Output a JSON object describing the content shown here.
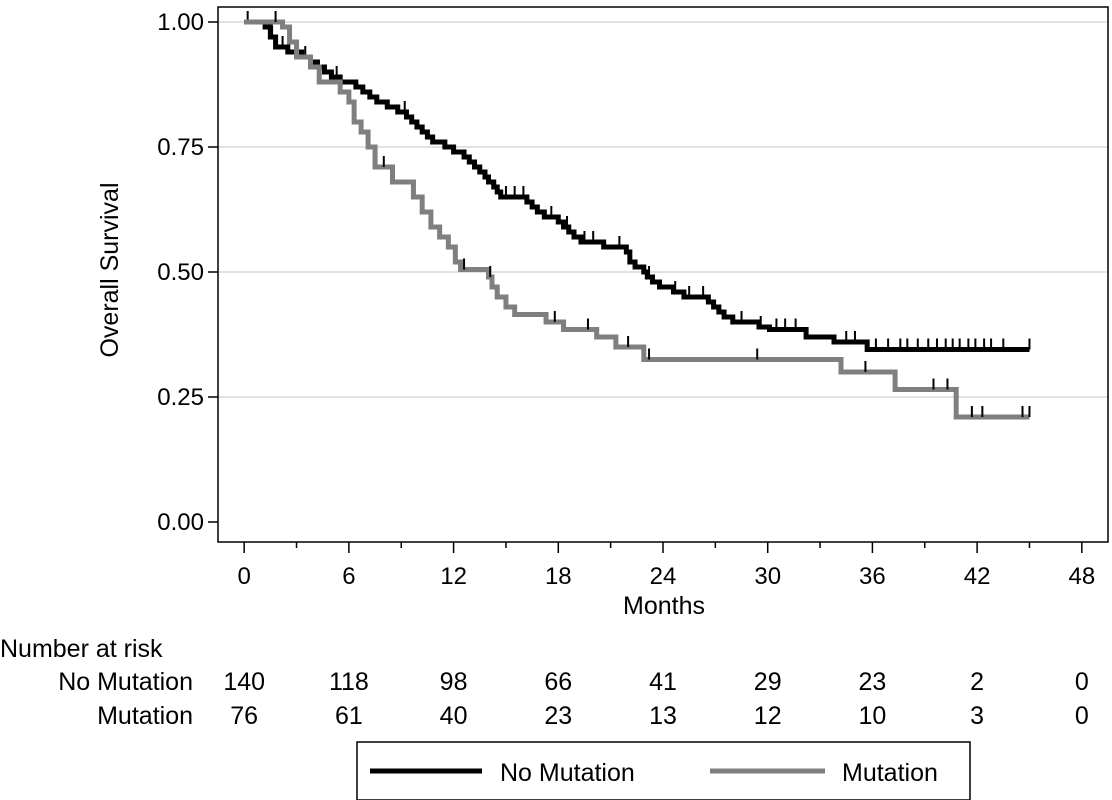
{
  "chart_data": {
    "type": "line",
    "xlabel": "Months",
    "ylabel": "Overall Survival",
    "xlim": [
      -1.5,
      49.5
    ],
    "ylim": [
      -0.04,
      1.03
    ],
    "x_ticks": [
      0,
      6,
      12,
      18,
      24,
      30,
      36,
      42,
      48
    ],
    "x_minor_ticks": [
      3,
      9,
      15,
      21,
      27,
      33,
      39,
      45
    ],
    "y_ticks": [
      0.0,
      0.25,
      0.5,
      0.75,
      1.0
    ],
    "x_tick_labels": [
      "0",
      "6",
      "12",
      "18",
      "24",
      "30",
      "36",
      "42",
      "48"
    ],
    "y_tick_labels": [
      "0.00",
      "0.25",
      "0.50",
      "0.75",
      "1.00"
    ],
    "grid": "horizontal",
    "legend_position": "bottom",
    "series": [
      {
        "name": "No Mutation",
        "color": "#000000",
        "steps": [
          [
            0,
            1.0
          ],
          [
            1.2,
            0.99
          ],
          [
            1.5,
            0.97
          ],
          [
            1.8,
            0.95
          ],
          [
            2.5,
            0.94
          ],
          [
            3.3,
            0.93
          ],
          [
            3.8,
            0.92
          ],
          [
            4.2,
            0.91
          ],
          [
            4.6,
            0.9
          ],
          [
            5.0,
            0.89
          ],
          [
            5.5,
            0.88
          ],
          [
            6.4,
            0.87
          ],
          [
            6.8,
            0.86
          ],
          [
            7.2,
            0.85
          ],
          [
            7.6,
            0.84
          ],
          [
            8.2,
            0.83
          ],
          [
            8.8,
            0.82
          ],
          [
            9.3,
            0.81
          ],
          [
            9.6,
            0.8
          ],
          [
            9.9,
            0.79
          ],
          [
            10.2,
            0.78
          ],
          [
            10.5,
            0.77
          ],
          [
            10.8,
            0.76
          ],
          [
            11.5,
            0.75
          ],
          [
            12.0,
            0.74
          ],
          [
            12.6,
            0.73
          ],
          [
            12.9,
            0.72
          ],
          [
            13.2,
            0.71
          ],
          [
            13.5,
            0.7
          ],
          [
            13.8,
            0.69
          ],
          [
            14.0,
            0.68
          ],
          [
            14.3,
            0.67
          ],
          [
            14.5,
            0.66
          ],
          [
            14.7,
            0.65
          ],
          [
            16.2,
            0.64
          ],
          [
            16.5,
            0.63
          ],
          [
            16.8,
            0.62
          ],
          [
            17.2,
            0.61
          ],
          [
            18.0,
            0.6
          ],
          [
            18.3,
            0.59
          ],
          [
            18.6,
            0.58
          ],
          [
            18.9,
            0.57
          ],
          [
            19.3,
            0.56
          ],
          [
            20.6,
            0.55
          ],
          [
            21.9,
            0.54
          ],
          [
            22.1,
            0.52
          ],
          [
            22.4,
            0.51
          ],
          [
            22.9,
            0.5
          ],
          [
            23.1,
            0.49
          ],
          [
            23.4,
            0.48
          ],
          [
            23.8,
            0.47
          ],
          [
            24.6,
            0.46
          ],
          [
            25.2,
            0.45
          ],
          [
            26.6,
            0.44
          ],
          [
            26.9,
            0.43
          ],
          [
            27.2,
            0.42
          ],
          [
            27.5,
            0.41
          ],
          [
            28.0,
            0.4
          ],
          [
            29.5,
            0.39
          ],
          [
            30.1,
            0.385
          ],
          [
            32.2,
            0.37
          ],
          [
            33.8,
            0.36
          ],
          [
            35.7,
            0.345
          ],
          [
            45.0,
            0.345
          ]
        ],
        "censor_times": [
          0.2,
          1.6,
          2.2,
          3.5,
          5.3,
          9.2,
          15.0,
          15.5,
          16.0,
          17.6,
          18.5,
          19.5,
          20.0,
          21.5,
          23.2,
          24.7,
          25.5,
          26.3,
          28.5,
          29.6,
          30.5,
          31.0,
          31.6,
          34.5,
          35.0,
          36.2,
          36.9,
          37.6,
          38.0,
          38.6,
          39.2,
          39.7,
          40.2,
          40.6,
          41.0,
          41.5,
          41.9,
          42.4,
          42.8,
          43.5,
          45.0
        ]
      },
      {
        "name": "Mutation",
        "color": "#7f7f7f",
        "steps": [
          [
            0,
            1.0
          ],
          [
            2.2,
            0.99
          ],
          [
            2.6,
            0.96
          ],
          [
            3.0,
            0.93
          ],
          [
            3.8,
            0.91
          ],
          [
            4.3,
            0.88
          ],
          [
            5.5,
            0.86
          ],
          [
            6.0,
            0.84
          ],
          [
            6.3,
            0.8
          ],
          [
            6.7,
            0.78
          ],
          [
            7.1,
            0.75
          ],
          [
            7.5,
            0.71
          ],
          [
            8.5,
            0.68
          ],
          [
            9.7,
            0.65
          ],
          [
            10.2,
            0.62
          ],
          [
            10.7,
            0.59
          ],
          [
            11.2,
            0.57
          ],
          [
            11.7,
            0.55
          ],
          [
            12.1,
            0.52
          ],
          [
            12.4,
            0.505
          ],
          [
            14.0,
            0.49
          ],
          [
            14.2,
            0.47
          ],
          [
            14.5,
            0.45
          ],
          [
            15.0,
            0.43
          ],
          [
            15.5,
            0.415
          ],
          [
            17.3,
            0.4
          ],
          [
            18.3,
            0.385
          ],
          [
            20.2,
            0.37
          ],
          [
            21.3,
            0.35
          ],
          [
            22.9,
            0.325
          ],
          [
            34.2,
            0.3
          ],
          [
            37.3,
            0.265
          ],
          [
            40.8,
            0.21
          ],
          [
            45.0,
            0.21
          ]
        ],
        "censor_times": [
          1.8,
          8.0,
          12.6,
          14.1,
          17.8,
          19.7,
          22.0,
          23.2,
          29.4,
          35.6,
          39.5,
          40.3,
          41.7,
          42.3,
          44.6,
          45.0
        ]
      }
    ],
    "risk_table": {
      "title": "Number at risk",
      "times": [
        0,
        6,
        12,
        18,
        24,
        30,
        36,
        42,
        48
      ],
      "rows": [
        {
          "label": "No Mutation",
          "counts": [
            "140",
            "118",
            "98",
            "66",
            "41",
            "29",
            "23",
            "2",
            "0"
          ]
        },
        {
          "label": "Mutation",
          "counts": [
            "76",
            "61",
            "40",
            "23",
            "13",
            "12",
            "10",
            "3",
            "0"
          ]
        }
      ]
    },
    "legend": [
      "No Mutation",
      "Mutation"
    ]
  }
}
